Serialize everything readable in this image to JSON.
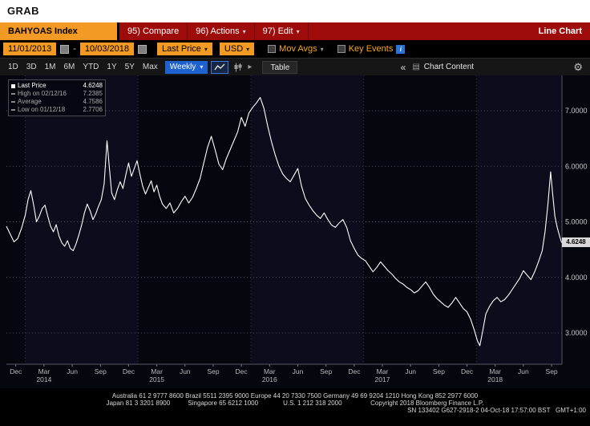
{
  "grab": {
    "title": "GRAB"
  },
  "colors": {
    "amber": "#F29A23",
    "menu_red": "#9E0B0B",
    "accent_blue": "#1E62D0",
    "line": "#FFFFFF",
    "chart_bg": "#06060F"
  },
  "title_bar": {
    "ticker": "BAHYOAS Index",
    "compare_label": "95) Compare",
    "actions_label": "96) Actions",
    "edit_label": "97) Edit",
    "function_title": "Line Chart"
  },
  "settings_bar": {
    "date_from": "11/01/2013",
    "date_to": "10/03/2018",
    "separator": "-",
    "price_field": "Last Price",
    "currency": "USD",
    "mov_avgs": "Mov Avgs",
    "key_events": "Key Events",
    "info_icon": "i"
  },
  "toolbar": {
    "periods": [
      "1D",
      "3D",
      "1M",
      "6M",
      "YTD",
      "1Y",
      "5Y",
      "Max"
    ],
    "frequency": "Weekly",
    "table": "Table",
    "collapse": "«",
    "chart_content": "Chart Content"
  },
  "chart_data": {
    "type": "line",
    "title": "BAHYOAS Index Last Price, Weekly, 11/01/2013 - 10/03/2018",
    "x_start": "11/01/2013",
    "x_end": "10/03/2018",
    "frequency": "Weekly",
    "t_unit": "months since 2013-11-01",
    "t_span": 59.1,
    "ylim": [
      2.44,
      7.63
    ],
    "grid": true,
    "y_ticks": [
      7,
      6,
      5,
      4,
      3
    ],
    "y_tick_labels": [
      "7.0000",
      "6.0000",
      "5.0000",
      "4.0000",
      "3.0000"
    ],
    "x_month_ticks": [
      {
        "t": 1,
        "label": "Dec"
      },
      {
        "t": 4,
        "label": "Mar"
      },
      {
        "t": 7,
        "label": "Jun"
      },
      {
        "t": 10,
        "label": "Sep"
      },
      {
        "t": 13,
        "label": "Dec"
      },
      {
        "t": 16,
        "label": "Mar"
      },
      {
        "t": 19,
        "label": "Jun"
      },
      {
        "t": 22,
        "label": "Sep"
      },
      {
        "t": 25,
        "label": "Dec"
      },
      {
        "t": 28,
        "label": "Mar"
      },
      {
        "t": 31,
        "label": "Jun"
      },
      {
        "t": 34,
        "label": "Sep"
      },
      {
        "t": 37,
        "label": "Dec"
      },
      {
        "t": 40,
        "label": "Mar"
      },
      {
        "t": 43,
        "label": "Jun"
      },
      {
        "t": 46,
        "label": "Sep"
      },
      {
        "t": 49,
        "label": "Dec"
      },
      {
        "t": 52,
        "label": "Mar"
      },
      {
        "t": 55,
        "label": "Jun"
      },
      {
        "t": 58,
        "label": "Sep"
      }
    ],
    "x_year_labels": [
      {
        "t": 4,
        "label": "2014"
      },
      {
        "t": 16,
        "label": "2015"
      },
      {
        "t": 28,
        "label": "2016"
      },
      {
        "t": 40,
        "label": "2017"
      },
      {
        "t": 52,
        "label": "2018"
      }
    ],
    "x_year_boundaries": [
      2,
      14,
      26,
      38,
      50
    ],
    "year_bands": [
      [
        2,
        14
      ],
      [
        26,
        38
      ],
      [
        50,
        59.1
      ]
    ],
    "legend_rows": [
      {
        "label": "Last Price",
        "value": "4.6248"
      },
      {
        "label": "High on 02/12/16",
        "value": "7.2385"
      },
      {
        "label": "Average",
        "value": "4.7586"
      },
      {
        "label": "Low on 01/12/18",
        "value": "2.7706"
      }
    ],
    "high": {
      "date": "02/12/16",
      "value": 7.2385
    },
    "average": 4.7586,
    "low": {
      "date": "01/12/18",
      "value": 2.7706
    },
    "last_price": 4.6248,
    "last_price_label": "4.6248",
    "series": [
      {
        "name": "Last Price",
        "color": "#FFFFFF",
        "points": [
          [
            0,
            4.92
          ],
          [
            0.4,
            4.78
          ],
          [
            0.8,
            4.64
          ],
          [
            1.2,
            4.7
          ],
          [
            1.6,
            4.88
          ],
          [
            2.0,
            5.12
          ],
          [
            2.3,
            5.4
          ],
          [
            2.6,
            5.56
          ],
          [
            2.9,
            5.3
          ],
          [
            3.2,
            5.0
          ],
          [
            3.5,
            5.1
          ],
          [
            3.8,
            5.24
          ],
          [
            4.1,
            5.3
          ],
          [
            4.4,
            5.1
          ],
          [
            4.7,
            4.92
          ],
          [
            5.0,
            4.82
          ],
          [
            5.3,
            4.95
          ],
          [
            5.6,
            4.74
          ],
          [
            5.9,
            4.62
          ],
          [
            6.2,
            4.56
          ],
          [
            6.5,
            4.66
          ],
          [
            6.8,
            4.52
          ],
          [
            7.1,
            4.48
          ],
          [
            7.4,
            4.6
          ],
          [
            7.7,
            4.76
          ],
          [
            8.0,
            4.94
          ],
          [
            8.3,
            5.16
          ],
          [
            8.6,
            5.32
          ],
          [
            8.9,
            5.2
          ],
          [
            9.2,
            5.04
          ],
          [
            9.5,
            5.14
          ],
          [
            9.8,
            5.28
          ],
          [
            10.1,
            5.4
          ],
          [
            10.4,
            5.68
          ],
          [
            10.7,
            6.46
          ],
          [
            10.95,
            5.98
          ],
          [
            11.2,
            5.52
          ],
          [
            11.5,
            5.4
          ],
          [
            11.8,
            5.58
          ],
          [
            12.1,
            5.72
          ],
          [
            12.4,
            5.6
          ],
          [
            12.7,
            5.84
          ],
          [
            13.0,
            6.06
          ],
          [
            13.3,
            5.82
          ],
          [
            13.6,
            5.96
          ],
          [
            13.9,
            6.1
          ],
          [
            14.2,
            5.86
          ],
          [
            14.5,
            5.64
          ],
          [
            14.8,
            5.5
          ],
          [
            15.1,
            5.62
          ],
          [
            15.4,
            5.74
          ],
          [
            15.7,
            5.54
          ],
          [
            16.0,
            5.66
          ],
          [
            16.3,
            5.46
          ],
          [
            16.6,
            5.32
          ],
          [
            17.0,
            5.24
          ],
          [
            17.4,
            5.34
          ],
          [
            17.8,
            5.16
          ],
          [
            18.2,
            5.24
          ],
          [
            18.6,
            5.36
          ],
          [
            19.0,
            5.46
          ],
          [
            19.4,
            5.34
          ],
          [
            19.8,
            5.44
          ],
          [
            20.2,
            5.6
          ],
          [
            20.6,
            5.78
          ],
          [
            21.0,
            6.06
          ],
          [
            21.4,
            6.34
          ],
          [
            21.8,
            6.54
          ],
          [
            22.2,
            6.3
          ],
          [
            22.6,
            6.04
          ],
          [
            23.0,
            5.94
          ],
          [
            23.4,
            6.14
          ],
          [
            23.8,
            6.3
          ],
          [
            24.2,
            6.46
          ],
          [
            24.6,
            6.62
          ],
          [
            25.0,
            6.88
          ],
          [
            25.4,
            6.72
          ],
          [
            25.8,
            6.96
          ],
          [
            26.2,
            7.06
          ],
          [
            26.6,
            7.14
          ],
          [
            27.0,
            7.2385
          ],
          [
            27.4,
            7.04
          ],
          [
            27.8,
            6.72
          ],
          [
            28.2,
            6.44
          ],
          [
            28.6,
            6.2
          ],
          [
            29.0,
            6.0
          ],
          [
            29.4,
            5.86
          ],
          [
            29.8,
            5.78
          ],
          [
            30.2,
            5.72
          ],
          [
            30.6,
            5.84
          ],
          [
            31.0,
            5.96
          ],
          [
            31.4,
            5.64
          ],
          [
            31.8,
            5.42
          ],
          [
            32.2,
            5.3
          ],
          [
            32.6,
            5.2
          ],
          [
            33.0,
            5.12
          ],
          [
            33.4,
            5.06
          ],
          [
            33.8,
            5.16
          ],
          [
            34.2,
            5.04
          ],
          [
            34.6,
            4.94
          ],
          [
            35.0,
            4.9
          ],
          [
            35.4,
            4.98
          ],
          [
            35.8,
            5.04
          ],
          [
            36.2,
            4.9
          ],
          [
            36.6,
            4.66
          ],
          [
            37.0,
            4.52
          ],
          [
            37.4,
            4.4
          ],
          [
            37.8,
            4.34
          ],
          [
            38.2,
            4.3
          ],
          [
            38.6,
            4.2
          ],
          [
            39.0,
            4.1
          ],
          [
            39.4,
            4.18
          ],
          [
            39.8,
            4.28
          ],
          [
            40.2,
            4.2
          ],
          [
            40.6,
            4.12
          ],
          [
            41.0,
            4.06
          ],
          [
            41.4,
            3.98
          ],
          [
            41.8,
            3.92
          ],
          [
            42.2,
            3.88
          ],
          [
            42.6,
            3.82
          ],
          [
            43.0,
            3.78
          ],
          [
            43.4,
            3.72
          ],
          [
            43.8,
            3.76
          ],
          [
            44.2,
            3.84
          ],
          [
            44.6,
            3.92
          ],
          [
            45.0,
            3.82
          ],
          [
            45.4,
            3.7
          ],
          [
            45.8,
            3.62
          ],
          [
            46.2,
            3.56
          ],
          [
            46.6,
            3.5
          ],
          [
            47.0,
            3.46
          ],
          [
            47.4,
            3.54
          ],
          [
            47.8,
            3.64
          ],
          [
            48.2,
            3.54
          ],
          [
            48.6,
            3.44
          ],
          [
            49.0,
            3.38
          ],
          [
            49.4,
            3.24
          ],
          [
            49.8,
            3.04
          ],
          [
            50.1,
            2.86
          ],
          [
            50.37,
            2.7706
          ],
          [
            50.7,
            3.06
          ],
          [
            51.0,
            3.34
          ],
          [
            51.4,
            3.48
          ],
          [
            51.8,
            3.58
          ],
          [
            52.2,
            3.64
          ],
          [
            52.6,
            3.56
          ],
          [
            53.0,
            3.6
          ],
          [
            53.4,
            3.68
          ],
          [
            53.8,
            3.78
          ],
          [
            54.2,
            3.88
          ],
          [
            54.6,
            3.98
          ],
          [
            55.0,
            4.12
          ],
          [
            55.4,
            4.04
          ],
          [
            55.8,
            3.96
          ],
          [
            56.2,
            4.1
          ],
          [
            56.6,
            4.28
          ],
          [
            57.0,
            4.48
          ],
          [
            57.3,
            4.82
          ],
          [
            57.6,
            5.3
          ],
          [
            57.9,
            5.9
          ],
          [
            58.1,
            5.52
          ],
          [
            58.35,
            5.1
          ],
          [
            58.6,
            4.9
          ],
          [
            58.85,
            4.74
          ],
          [
            59.07,
            4.6248
          ]
        ]
      }
    ]
  },
  "footer": {
    "line1": "Australia 61 2 9777 8600 Brazil 5511 2395 9000 Europe 44 20 7330 7500 Germany 49 69 9204 1210 Hong Kong 852 2977 6000",
    "line2": "Japan 81 3 3201 8900          Singapore 65 6212 1000              U.S. 1 212 318 2000                Copyright 2018 Bloomberg Finance L.P.",
    "line3": "SN 133402 G627-2918-2 04-Oct-18 17:57:00 BST   GMT+1:00"
  }
}
